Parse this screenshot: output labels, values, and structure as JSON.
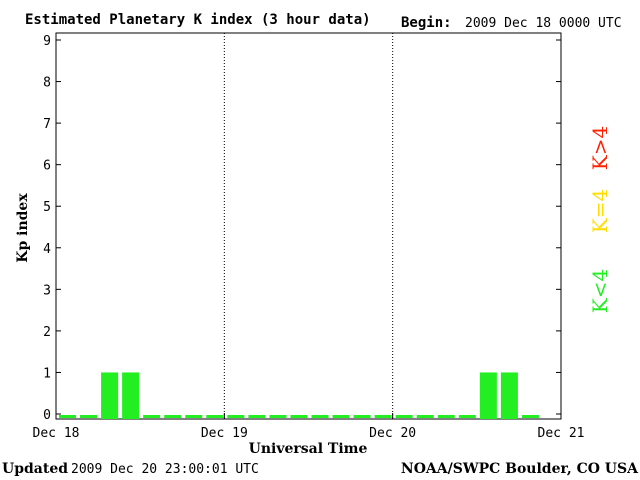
{
  "header": {
    "title": "Estimated Planetary K index (3 hour data)",
    "begin_label": "Begin:",
    "begin_value": "2009 Dec 18 0000 UTC"
  },
  "footer": {
    "updated_label": "Updated",
    "updated_value": "2009 Dec 20 23:00:01 UTC",
    "source": "NOAA/SWPC Boulder, CO USA"
  },
  "legend": {
    "items": [
      {
        "label": "K<4",
        "color": "#22ee22"
      },
      {
        "label": "K=4",
        "color": "#ffdd00"
      },
      {
        "label": "K>4",
        "color": "#ff2200"
      }
    ]
  },
  "chart_data": {
    "type": "bar",
    "title": "Estimated Planetary K index (3 hour data)",
    "xlabel": "Universal Time",
    "ylabel": "Kp index",
    "ylim": [
      0,
      9
    ],
    "yticks": [
      0,
      1,
      2,
      3,
      4,
      5,
      6,
      7,
      8,
      9
    ],
    "xticks": [
      "Dec 18",
      "Dec 19",
      "Dec 20",
      "Dec 21"
    ],
    "x_unit": "3-hour interval",
    "values": [
      0,
      0,
      1,
      1,
      0,
      0,
      0,
      0,
      0,
      0,
      0,
      0,
      0,
      0,
      0,
      0,
      0,
      0,
      0,
      0,
      1,
      1,
      0
    ],
    "bar_color": "#22ee22",
    "day_separators": [
      "Dec 19",
      "Dec 20"
    ]
  }
}
